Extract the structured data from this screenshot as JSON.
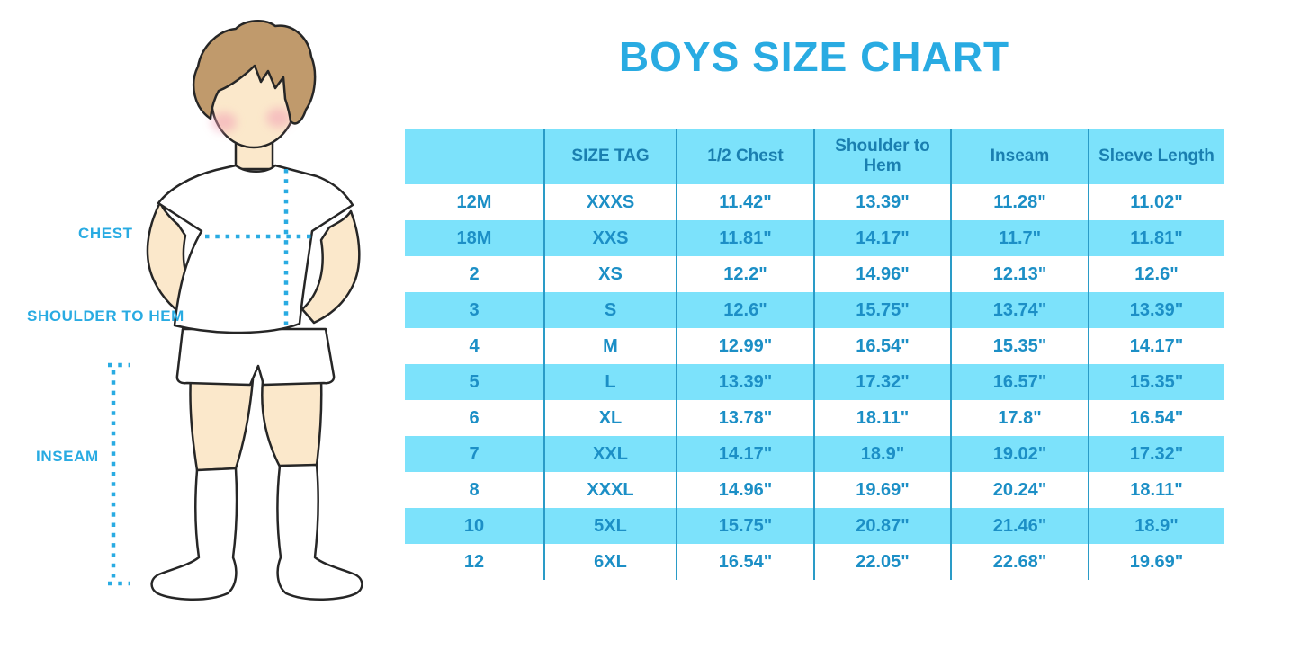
{
  "title": "BOYS SIZE CHART",
  "figure": {
    "labels": {
      "chest": "CHEST",
      "shoulder_to_hem": "SHOULDER TO HEM",
      "inseam": "INSEAM"
    }
  },
  "table": {
    "headers": [
      "",
      "SIZE TAG",
      "1/2 Chest",
      "Shoulder to Hem",
      "Inseam",
      "Sleeve Length"
    ],
    "rows": [
      [
        "12M",
        "XXXS",
        "11.42\"",
        "13.39\"",
        "11.28\"",
        "11.02\""
      ],
      [
        "18M",
        "XXS",
        "11.81\"",
        "14.17\"",
        "11.7\"",
        "11.81\""
      ],
      [
        "2",
        "XS",
        "12.2\"",
        "14.96\"",
        "12.13\"",
        "12.6\""
      ],
      [
        "3",
        "S",
        "12.6\"",
        "15.75\"",
        "13.74\"",
        "13.39\""
      ],
      [
        "4",
        "M",
        "12.99\"",
        "16.54\"",
        "15.35\"",
        "14.17\""
      ],
      [
        "5",
        "L",
        "13.39\"",
        "17.32\"",
        "16.57\"",
        "15.35\""
      ],
      [
        "6",
        "XL",
        "13.78\"",
        "18.11\"",
        "17.8\"",
        "16.54\""
      ],
      [
        "7",
        "XXL",
        "14.17\"",
        "18.9\"",
        "19.02\"",
        "17.32\""
      ],
      [
        "8",
        "XXXL",
        "14.96\"",
        "19.69\"",
        "20.24\"",
        "18.11\""
      ],
      [
        "10",
        "5XL",
        "15.75\"",
        "20.87\"",
        "21.46\"",
        "18.9\""
      ],
      [
        "12",
        "6XL",
        "16.54\"",
        "22.05\"",
        "22.68\"",
        "19.69\""
      ]
    ]
  },
  "colors": {
    "accent_blue": "#29ABE2",
    "band_cyan": "#7CE2FB",
    "grid_line": "#2A9BC7",
    "header_text": "#1A7FB0",
    "cell_text": "#1C8FC6",
    "skin": "#FBE8CB",
    "hair": "#C09A6C",
    "outline": "#262626",
    "blush": "#F2A0B5"
  }
}
